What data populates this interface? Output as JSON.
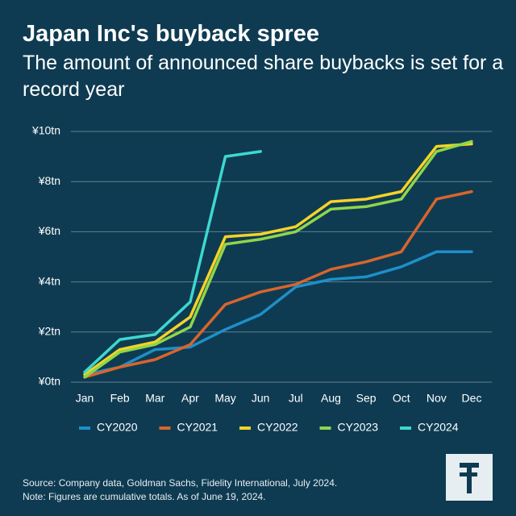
{
  "chart_data": {
    "type": "line",
    "title": "Japan Inc's buyback spree",
    "subtitle": "The amount of announced share buybacks is set for a record year",
    "categories": [
      "Jan",
      "Feb",
      "Mar",
      "Apr",
      "May",
      "Jun",
      "Jul",
      "Aug",
      "Sep",
      "Oct",
      "Nov",
      "Dec"
    ],
    "series": [
      {
        "name": "CY2020",
        "color": "#1f8fc9",
        "values": [
          0.3,
          0.6,
          1.3,
          1.4,
          2.1,
          2.7,
          3.8,
          4.1,
          4.2,
          4.6,
          5.2,
          5.2
        ]
      },
      {
        "name": "CY2021",
        "color": "#d9652b",
        "values": [
          0.2,
          0.6,
          0.9,
          1.5,
          3.1,
          3.6,
          3.9,
          4.5,
          4.8,
          5.2,
          7.3,
          7.6
        ]
      },
      {
        "name": "CY2022",
        "color": "#f5d327",
        "values": [
          0.3,
          1.3,
          1.6,
          2.6,
          5.8,
          5.9,
          6.2,
          7.2,
          7.3,
          7.6,
          9.4,
          9.5
        ]
      },
      {
        "name": "CY2023",
        "color": "#8fd64a",
        "values": [
          0.2,
          1.2,
          1.5,
          2.2,
          5.5,
          5.7,
          6.0,
          6.9,
          7.0,
          7.3,
          9.2,
          9.6
        ]
      },
      {
        "name": "CY2024",
        "color": "#3dd8d0",
        "values": [
          0.4,
          1.7,
          1.9,
          3.2,
          9.0,
          9.2,
          null,
          null,
          null,
          null,
          null,
          null
        ]
      }
    ],
    "ylim": [
      0,
      10
    ],
    "yticks": [
      {
        "value": 0,
        "label": "¥0tn"
      },
      {
        "value": 2,
        "label": "¥2tn"
      },
      {
        "value": 4,
        "label": "¥4tn"
      },
      {
        "value": 6,
        "label": "¥6tn"
      },
      {
        "value": 8,
        "label": "¥8tn"
      },
      {
        "value": 10,
        "label": "¥10tn"
      }
    ],
    "grid": true,
    "legend": "bottom",
    "source": "Source: Company data, Goldman Sachs, Fidelity International, July 2024.",
    "note": "Note: Figures are cumulative totals. As of June 19, 2024."
  }
}
